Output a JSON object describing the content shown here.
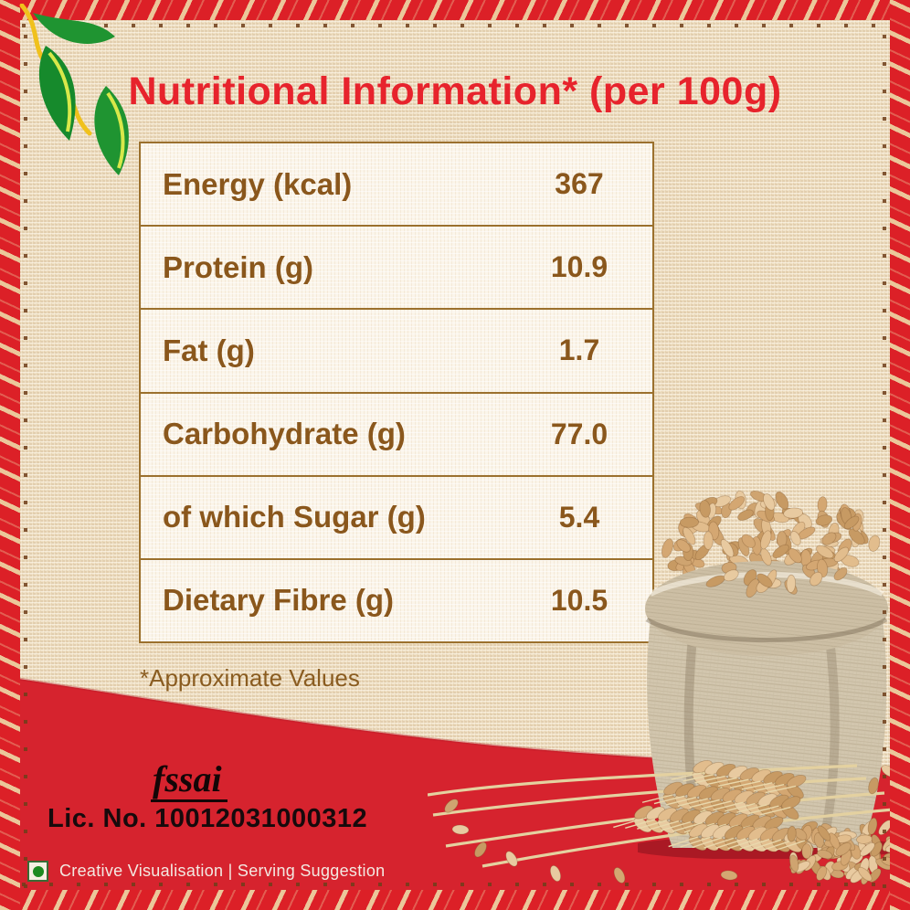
{
  "header": {
    "title": "Nutritional Information* (per 100g)"
  },
  "nutrition_table": {
    "rows": [
      {
        "label": "Energy (kcal)",
        "value": "367"
      },
      {
        "label": "Protein (g)",
        "value": "10.9"
      },
      {
        "label": "Fat (g)",
        "value": "1.7"
      },
      {
        "label": "Carbohydrate (g)",
        "value": "77.0"
      },
      {
        "label": "of which Sugar (g)",
        "value": "5.4"
      },
      {
        "label": "Dietary Fibre (g)",
        "value": "10.5"
      }
    ],
    "footnote": "*Approximate Values"
  },
  "certification": {
    "fssai_logo_text": "fssai",
    "license_number": "Lic. No. 10012031000312"
  },
  "footer": {
    "caption": "Creative Visualisation | Serving Suggestion"
  },
  "icons": {
    "leaves": "green-leaves-icon",
    "veg_mark": "veg-mark-icon",
    "sack": "wheat-sack-image",
    "wheat": "wheat-ears-image"
  },
  "colors": {
    "brand_red": "#d6232e",
    "border_red": "#dc2027",
    "title_red": "#e7232c",
    "table_border_brown": "#9b702d",
    "table_text_brown": "#8a571c",
    "burlap_background": "#f2e4ca",
    "veg_green": "#1d8a1f"
  }
}
